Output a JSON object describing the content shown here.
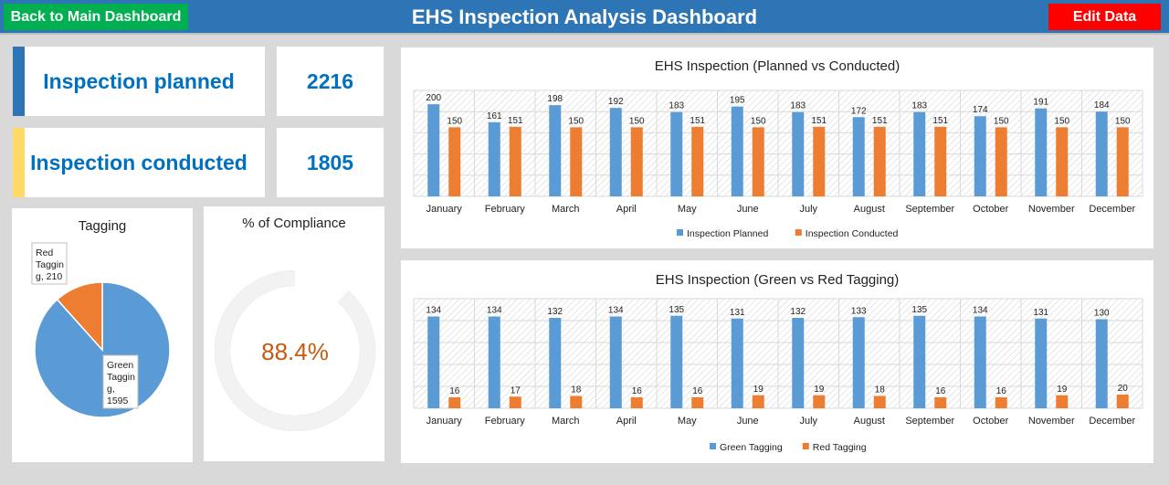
{
  "header": {
    "title": "EHS Inspection Analysis Dashboard",
    "back_label": "Back to Main Dashboard",
    "edit_label": "Edit Data"
  },
  "kpis": {
    "planned_label": "Inspection planned",
    "planned_value": "2216",
    "conducted_label": "Inspection conducted",
    "conducted_value": "1805"
  },
  "colors": {
    "header": "#2e75b6",
    "back_button": "#00b050",
    "edit_button": "#ff0000",
    "kpi_text": "#0070c0",
    "planned_stripe": "#2e75b6",
    "conducted_stripe": "#ffd966",
    "series_blue": "#5b9bd5",
    "series_orange": "#ed7d31",
    "compliance_text": "#c55a11"
  },
  "chart_data": [
    {
      "id": "planned_vs_conducted",
      "type": "bar",
      "title": "EHS Inspection  (Planned vs Conducted)",
      "categories": [
        "January",
        "February",
        "March",
        "April",
        "May",
        "June",
        "July",
        "August",
        "September",
        "October",
        "November",
        "December"
      ],
      "series": [
        {
          "name": "Inspection Planned",
          "color": "#5b9bd5",
          "values": [
            200,
            161,
            198,
            192,
            183,
            195,
            183,
            172,
            183,
            174,
            191,
            184
          ]
        },
        {
          "name": "Inspection Conducted",
          "color": "#ed7d31",
          "values": [
            150,
            151,
            150,
            150,
            151,
            150,
            151,
            151,
            151,
            150,
            150,
            150
          ]
        }
      ],
      "ylim": [
        0,
        230
      ],
      "legend": "bottom"
    },
    {
      "id": "green_vs_red",
      "type": "bar",
      "title": "EHS Inspection  (Green vs Red Tagging)",
      "categories": [
        "January",
        "February",
        "March",
        "April",
        "May",
        "June",
        "July",
        "August",
        "September",
        "October",
        "November",
        "December"
      ],
      "series": [
        {
          "name": "Green Tagging",
          "color": "#5b9bd5",
          "values": [
            134,
            134,
            132,
            134,
            135,
            131,
            132,
            133,
            135,
            134,
            131,
            130
          ]
        },
        {
          "name": "Red Tagging",
          "color": "#ed7d31",
          "values": [
            16,
            17,
            18,
            16,
            16,
            19,
            19,
            18,
            16,
            16,
            19,
            20
          ]
        }
      ],
      "ylim": [
        0,
        160
      ],
      "legend": "bottom"
    },
    {
      "id": "tagging",
      "type": "pie",
      "title": "Tagging",
      "slices": [
        {
          "label_lines": [
            "Red",
            "Taggin",
            "g, 210"
          ],
          "value": 210,
          "color": "#ed7d31"
        },
        {
          "label_lines": [
            "Green",
            "Taggin",
            "g,",
            "1595"
          ],
          "value": 1595,
          "color": "#5b9bd5"
        }
      ]
    },
    {
      "id": "compliance",
      "type": "pie",
      "title": "% of Compliance",
      "value": 88.4,
      "center_label": "88.4%",
      "color": "#ed7d31",
      "rest_color": "#f2f2f2"
    }
  ]
}
